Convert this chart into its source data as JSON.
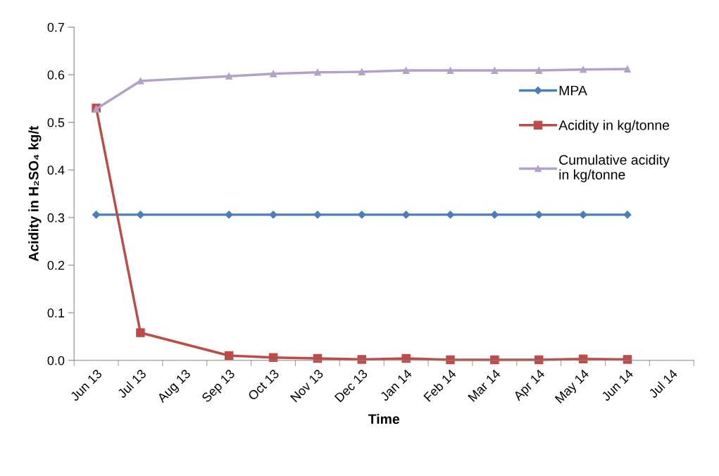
{
  "chart_data": {
    "type": "line",
    "xlabel": "Time",
    "ylabel": "Acidity in H₂SO₄ kg/t",
    "categories": [
      "Jun 13",
      "Jul 13",
      "Aug 13",
      "Sep 13",
      "Oct 13",
      "Nov 13",
      "Dec 13",
      "Jan 14",
      "Feb 14",
      "Mar 14",
      "Apr 14",
      "May 14",
      "Jun 14",
      "Jul 14"
    ],
    "series": [
      {
        "name": "MPA",
        "color": "#4a7ebb",
        "marker": "diamond",
        "values": [
          0.306,
          0.306,
          null,
          0.306,
          0.306,
          0.306,
          0.306,
          0.306,
          0.306,
          0.306,
          0.306,
          0.306,
          0.306,
          null
        ]
      },
      {
        "name": "Acidity in kg/tonne",
        "color": "#be4b48",
        "marker": "square",
        "values": [
          0.53,
          0.058,
          null,
          0.01,
          0.006,
          0.004,
          0.002,
          0.004,
          0.001,
          0.001,
          0.001,
          0.003,
          0.002,
          null
        ]
      },
      {
        "name": "Cumulative acidity in kg/tonne",
        "color": "#b3a2c7",
        "marker": "triangle",
        "values": [
          0.528,
          0.587,
          null,
          0.597,
          0.602,
          0.605,
          0.606,
          0.609,
          0.609,
          0.609,
          0.609,
          0.611,
          0.612,
          null
        ]
      }
    ],
    "ylim": [
      0,
      0.7
    ],
    "yticks": [
      {
        "value": 0,
        "label": "0.0"
      },
      {
        "value": 0.1,
        "label": "0.1"
      },
      {
        "value": 0.2,
        "label": "0.2"
      },
      {
        "value": 0.3,
        "label": "0.3"
      },
      {
        "value": 0.4,
        "label": "0.4"
      },
      {
        "value": 0.5,
        "label": "0.5"
      },
      {
        "value": 0.6,
        "label": "0.6"
      },
      {
        "value": 0.7,
        "label": "0.7"
      }
    ],
    "grid": false,
    "legend": "right",
    "line_style": "solid"
  }
}
